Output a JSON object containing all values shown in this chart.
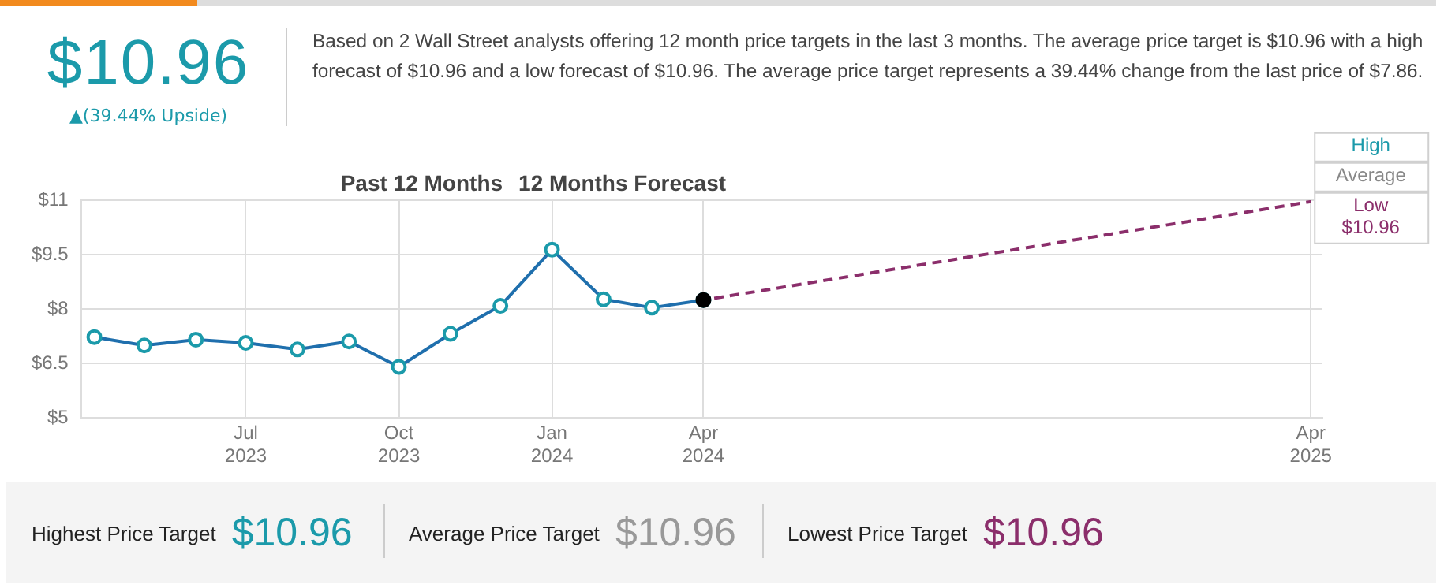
{
  "chart_data": {
    "type": "line",
    "title": "$10.96",
    "subtitle": "▲(39.44% Upside)",
    "annotations": [
      "Based on 2 Wall Street analysts offering 12 month price targets in the last 3 months. The average price target is $10.96 with a high forecast of $10.96 and a low forecast of $10.96. The average price target represents a 39.44% change from the last price of $7.86.",
      "Past 12 Months",
      "12 Months Forecast",
      "High",
      "Average",
      {
        "text": "Low $10.96",
        "x": "2025-04",
        "y": 10.96
      },
      "Highest Price Target",
      "$10.96",
      "Average Price Target",
      "$10.96",
      "Lowest Price Target",
      "$10.96"
    ],
    "xlim": [
      "2023-03-24",
      "2025-04-08"
    ],
    "xticks": [
      {
        "value": "2023-07",
        "label": "Jul 2023"
      },
      {
        "value": "2023-10",
        "label": "Oct 2023"
      },
      {
        "value": "2024-01",
        "label": "Jan 2024"
      },
      {
        "value": "2024-04",
        "label": "Apr 2024"
      },
      {
        "value": "2025-04",
        "label": "Apr 2025"
      }
    ],
    "ylim": [
      5,
      11
    ],
    "yticks": [
      {
        "value": 5,
        "label": "$5"
      },
      {
        "value": 6.5,
        "label": "$6.5"
      },
      {
        "value": 8,
        "label": "$8"
      },
      {
        "value": 9.5,
        "label": "$9.5"
      },
      {
        "value": 11,
        "label": "$11"
      }
    ],
    "grid": true,
    "legend": false,
    "series": [
      {
        "type": "line",
        "color": "#1f6fad",
        "marker": "circle",
        "line_style": "solid",
        "x": [
          "2023-04",
          "2023-05",
          "2023-06",
          "2023-07",
          "2023-08",
          "2023-09",
          "2023-10",
          "2023-11",
          "2023-12",
          "2024-01",
          "2024-02",
          "2024-03",
          "2024-04"
        ],
        "values": [
          7.23,
          7.0,
          7.16,
          7.07,
          6.89,
          7.11,
          6.41,
          7.32,
          8.09,
          9.64,
          8.27,
          8.04,
          8.25
        ]
      },
      {
        "type": "line",
        "color": "#8b2e6b",
        "marker": "none",
        "line_style": "dashed",
        "x": [
          "2024-04",
          "2025-04"
        ],
        "values": [
          8.25,
          10.96
        ]
      },
      {
        "type": "scatter",
        "color": "#000000",
        "marker": "circle",
        "x": [
          "2024-04"
        ],
        "values": [
          8.25
        ]
      }
    ]
  }
}
